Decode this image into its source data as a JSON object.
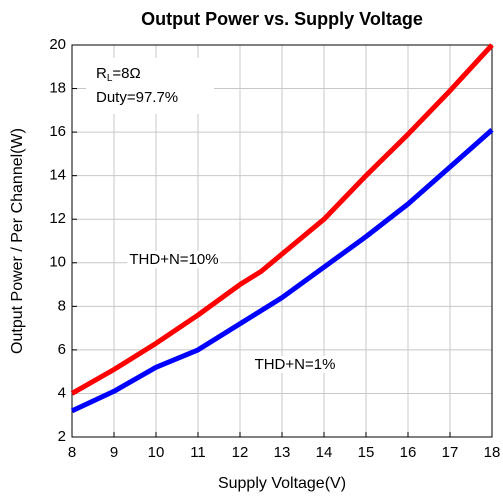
{
  "chart_data": {
    "type": "line",
    "title": "Output Power vs. Supply Voltage",
    "xlabel": "Supply Voltage(V)",
    "ylabel": "Output Power / Per Channel(W)",
    "xlim": [
      8,
      18
    ],
    "xticks": [
      8,
      9,
      10,
      11,
      12,
      13,
      14,
      15,
      16,
      17,
      18
    ],
    "ylim": [
      2,
      20
    ],
    "yticks": [
      2,
      4,
      6,
      8,
      10,
      12,
      14,
      16,
      18,
      20
    ],
    "grid": true,
    "annotation": {
      "lines": [
        [
          "R",
          "L",
          "=8Ω"
        ],
        [
          "Duty=97.7%"
        ]
      ]
    },
    "series": [
      {
        "name": "THD+N=10%",
        "color": "#ff0000",
        "x": [
          8,
          9,
          10,
          11,
          12,
          12.5,
          13,
          14,
          15,
          16,
          17,
          18
        ],
        "values": [
          4.0,
          5.1,
          6.3,
          7.6,
          9.0,
          9.6,
          10.4,
          12.0,
          14.0,
          15.9,
          17.9,
          20.0
        ]
      },
      {
        "name": "THD+N=1%",
        "color": "#0000ff",
        "x": [
          8,
          9,
          10,
          11,
          12,
          13,
          14,
          15,
          16,
          17,
          18
        ],
        "values": [
          3.2,
          4.1,
          5.2,
          6.0,
          7.2,
          8.4,
          9.8,
          11.2,
          12.7,
          14.4,
          16.1
        ]
      }
    ]
  }
}
